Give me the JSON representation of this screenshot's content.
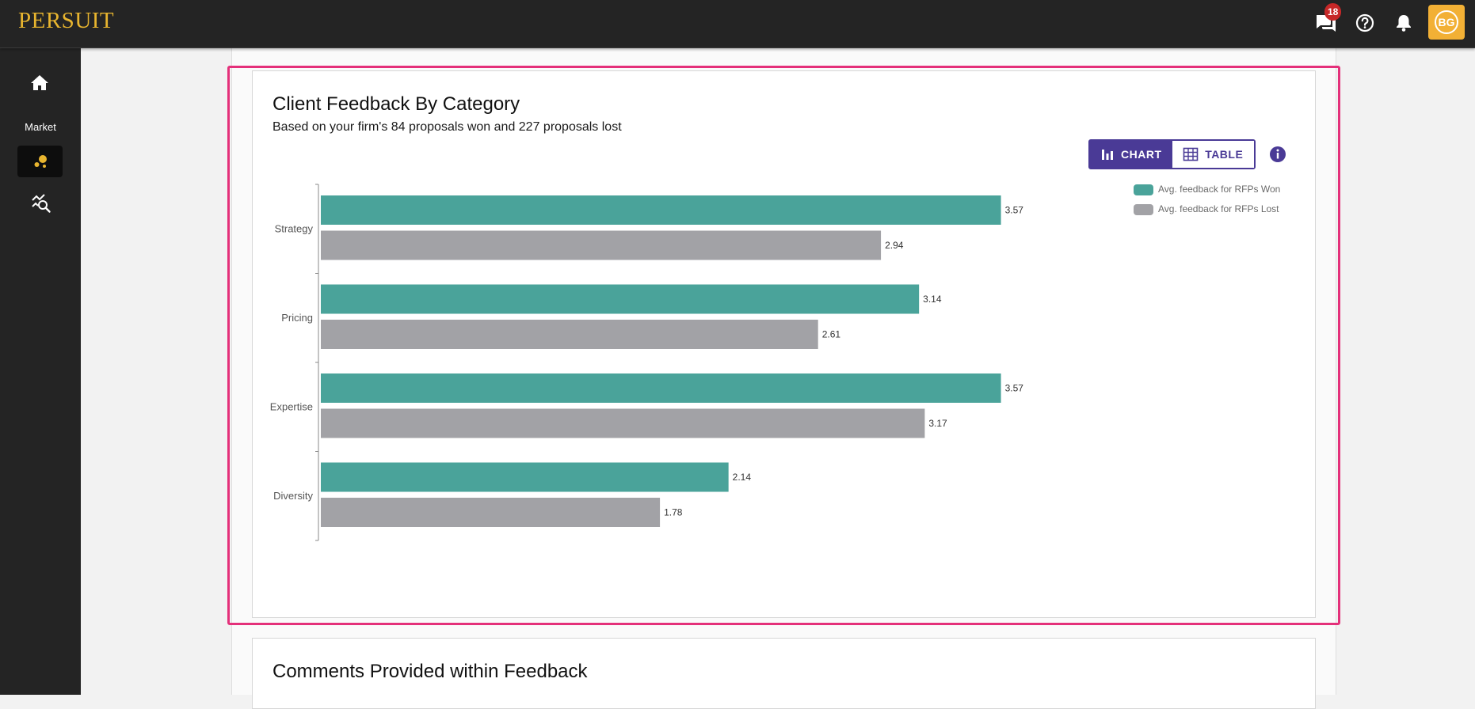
{
  "app": {
    "logo": "PERSUIT",
    "messages_badge": "18",
    "avatar_initials": "BG"
  },
  "sidebar": {
    "section_label": "Market"
  },
  "feedback_card": {
    "title": "Client Feedback By Category",
    "subtitle": "Based on your firm's 84 proposals won and 227 proposals lost",
    "toggle": {
      "chart_label": "CHART",
      "table_label": "TABLE",
      "selected": "CHART"
    }
  },
  "comments_card": {
    "title": "Comments Provided within Feedback"
  },
  "colors": {
    "won": "#4aa39a",
    "lost": "#a2a2a6",
    "accent": "#4a3a96",
    "highlight": "#e4307a",
    "logo": "#e8b52f"
  },
  "chart_data": {
    "type": "bar",
    "orientation": "horizontal",
    "categories": [
      "Strategy",
      "Pricing",
      "Expertise",
      "Diversity"
    ],
    "series": [
      {
        "name": "Avg. feedback for RFPs Won",
        "values": [
          3.57,
          3.14,
          3.57,
          2.14
        ]
      },
      {
        "name": "Avg. feedback for RFPs Lost",
        "values": [
          2.94,
          2.61,
          3.17,
          1.78
        ]
      }
    ],
    "value_labels": true,
    "legend_position": "top-right",
    "grid": false
  }
}
